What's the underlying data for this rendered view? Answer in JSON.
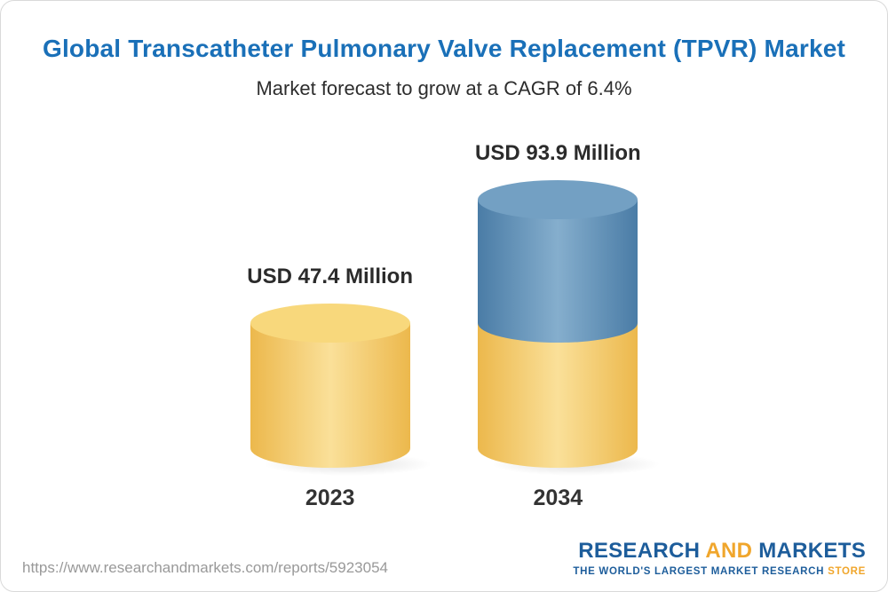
{
  "chart_data": {
    "type": "bar",
    "title": "Global Transcatheter Pulmonary Valve Replacement (TPVR) Market",
    "subtitle": "Market forecast to grow at a CAGR of 6.4%",
    "unit": "USD Million",
    "cagr_percent": 6.4,
    "categories": [
      "2023",
      "2034"
    ],
    "values": [
      47.4,
      93.9
    ],
    "grid": false,
    "legend": "none",
    "bars": [
      {
        "category": "2023",
        "label": "USD 47.4 Million",
        "value": 47.4,
        "segments": [
          {
            "name": "2023-base",
            "color": "#F7CA60",
            "value": 47.4
          }
        ]
      },
      {
        "category": "2034",
        "label": "USD 93.9 Million",
        "value": 93.9,
        "segments": [
          {
            "name": "2023-base",
            "color": "#F7CA60",
            "value": 47.4
          },
          {
            "name": "forecast-growth",
            "color": "#5C8EB8",
            "value": 46.5
          }
        ]
      }
    ]
  },
  "footer": {
    "url": "https://www.researchandmarkets.com/reports/5923054",
    "logo": {
      "research": "RESEARCH",
      "and": "AND",
      "markets": "MARKETS",
      "tagline_main": "THE WORLD'S LARGEST MARKET RESEARCH ",
      "tagline_highlight": "STORE"
    }
  },
  "colors": {
    "title_blue": "#1A70B8",
    "text_dark": "#2B2B2B",
    "bar_yellow": "#F7CA60",
    "bar_yellow_top": "#F8D87C",
    "bar_blue": "#5C8EB8",
    "bar_blue_top": "#73A0C3",
    "logo_blue": "#1D5D9B",
    "logo_orange": "#F0A62C",
    "url_gray": "#999999"
  }
}
